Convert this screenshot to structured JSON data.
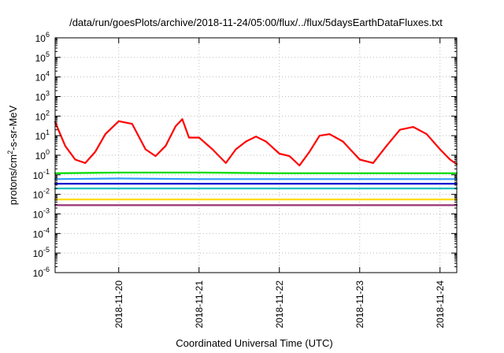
{
  "chart_data": {
    "type": "line",
    "title": "/data/run/goesPlots/archive/2018-11-24/05:00/flux/../flux/5daysEarthDataFluxes.txt",
    "xlabel": "Coordinated Universal Time (UTC)",
    "ylabel": {
      "base": "protons/cm",
      "sup": "2",
      "rest": "-s-sr-MeV"
    },
    "y_scale": "log",
    "ylim": [
      1e-06,
      1000000.0
    ],
    "y_ticks": [
      {
        "value": 1e-06,
        "base": "10",
        "exp": "-6"
      },
      {
        "value": 1e-05,
        "base": "10",
        "exp": "-5"
      },
      {
        "value": 0.0001,
        "base": "10",
        "exp": "-4"
      },
      {
        "value": 0.001,
        "base": "10",
        "exp": "-3"
      },
      {
        "value": 0.01,
        "base": "10",
        "exp": "-2"
      },
      {
        "value": 0.1,
        "base": "10",
        "exp": "-1"
      },
      {
        "value": 1,
        "base": "10",
        "exp": "0"
      },
      {
        "value": 10,
        "base": "10",
        "exp": "1"
      },
      {
        "value": 100,
        "base": "10",
        "exp": "2"
      },
      {
        "value": 1000,
        "base": "10",
        "exp": "3"
      },
      {
        "value": 10000,
        "base": "10",
        "exp": "4"
      },
      {
        "value": 100000,
        "base": "10",
        "exp": "5"
      },
      {
        "value": 1000000,
        "base": "10",
        "exp": "6"
      }
    ],
    "xlim": [
      "2018-11-19 05:00",
      "2018-11-24 05:00"
    ],
    "x_ticks": [
      {
        "value": "2018-11-20 00:00",
        "label": "2018-11-20"
      },
      {
        "value": "2018-11-21 00:00",
        "label": "2018-11-21"
      },
      {
        "value": "2018-11-22 00:00",
        "label": "2018-11-22"
      },
      {
        "value": "2018-11-23 00:00",
        "label": "2018-11-23"
      },
      {
        "value": "2018-11-24 00:00",
        "label": "2018-11-24"
      }
    ],
    "grid": true,
    "series": [
      {
        "color": "#ff0000",
        "x": [
          "2018-11-19 05:00",
          "2018-11-19 08:00",
          "2018-11-19 11:00",
          "2018-11-19 14:00",
          "2018-11-19 17:00",
          "2018-11-19 20:00",
          "2018-11-20 00:00",
          "2018-11-20 04:00",
          "2018-11-20 08:00",
          "2018-11-20 11:00",
          "2018-11-20 14:00",
          "2018-11-20 17:00",
          "2018-11-20 19:00",
          "2018-11-20 21:00",
          "2018-11-21 00:00",
          "2018-11-21 04:00",
          "2018-11-21 08:00",
          "2018-11-21 11:00",
          "2018-11-21 14:00",
          "2018-11-21 17:00",
          "2018-11-21 20:00",
          "2018-11-22 00:00",
          "2018-11-22 03:00",
          "2018-11-22 06:00",
          "2018-11-22 09:00",
          "2018-11-22 12:00",
          "2018-11-22 15:00",
          "2018-11-22 19:00",
          "2018-11-23 00:00",
          "2018-11-23 04:00",
          "2018-11-23 08:00",
          "2018-11-23 12:00",
          "2018-11-23 16:00",
          "2018-11-23 20:00",
          "2018-11-24 00:00",
          "2018-11-24 03:00",
          "2018-11-24 05:00"
        ],
        "values": [
          50,
          3,
          0.6,
          0.4,
          1.5,
          12,
          55,
          40,
          2,
          0.9,
          3,
          30,
          70,
          8,
          8,
          2,
          0.4,
          2,
          5,
          9,
          5,
          1.2,
          0.9,
          0.3,
          1.5,
          10,
          12,
          5,
          0.6,
          0.4,
          3,
          20,
          28,
          12,
          2,
          0.6,
          0.35
        ]
      },
      {
        "color": "#00dd00",
        "x": [
          "2018-11-19 05:00",
          "2018-11-20 00:00",
          "2018-11-21 00:00",
          "2018-11-22 00:00",
          "2018-11-23 00:00",
          "2018-11-24 00:00",
          "2018-11-24 05:00"
        ],
        "values": [
          0.12,
          0.13,
          0.13,
          0.12,
          0.12,
          0.12,
          0.12
        ]
      },
      {
        "color": "#3399ff",
        "x": [
          "2018-11-19 05:00",
          "2018-11-20 00:00",
          "2018-11-21 00:00",
          "2018-11-22 00:00",
          "2018-11-23 00:00",
          "2018-11-24 00:00",
          "2018-11-24 05:00"
        ],
        "values": [
          0.06,
          0.065,
          0.06,
          0.06,
          0.06,
          0.06,
          0.06
        ]
      },
      {
        "color": "#0000cc",
        "x": [
          "2018-11-19 05:00",
          "2018-11-20 00:00",
          "2018-11-21 00:00",
          "2018-11-22 00:00",
          "2018-11-23 00:00",
          "2018-11-24 00:00",
          "2018-11-24 05:00"
        ],
        "values": [
          0.035,
          0.035,
          0.035,
          0.035,
          0.035,
          0.035,
          0.035
        ]
      },
      {
        "color": "#00bbbb",
        "x": [
          "2018-11-19 05:00",
          "2018-11-20 00:00",
          "2018-11-21 00:00",
          "2018-11-22 00:00",
          "2018-11-23 00:00",
          "2018-11-24 00:00",
          "2018-11-24 05:00"
        ],
        "values": [
          0.02,
          0.02,
          0.02,
          0.02,
          0.02,
          0.02,
          0.02
        ]
      },
      {
        "color": "#ffdd00",
        "x": [
          "2018-11-19 05:00",
          "2018-11-20 00:00",
          "2018-11-21 00:00",
          "2018-11-22 00:00",
          "2018-11-23 00:00",
          "2018-11-24 00:00",
          "2018-11-24 05:00"
        ],
        "values": [
          0.0055,
          0.0055,
          0.0055,
          0.0055,
          0.0055,
          0.0055,
          0.0055
        ]
      },
      {
        "color": "#993377",
        "x": [
          "2018-11-19 05:00",
          "2018-11-20 00:00",
          "2018-11-21 00:00",
          "2018-11-22 00:00",
          "2018-11-23 00:00",
          "2018-11-24 00:00",
          "2018-11-24 05:00"
        ],
        "values": [
          0.0028,
          0.0028,
          0.0028,
          0.0028,
          0.0028,
          0.0028,
          0.0028
        ]
      }
    ]
  }
}
